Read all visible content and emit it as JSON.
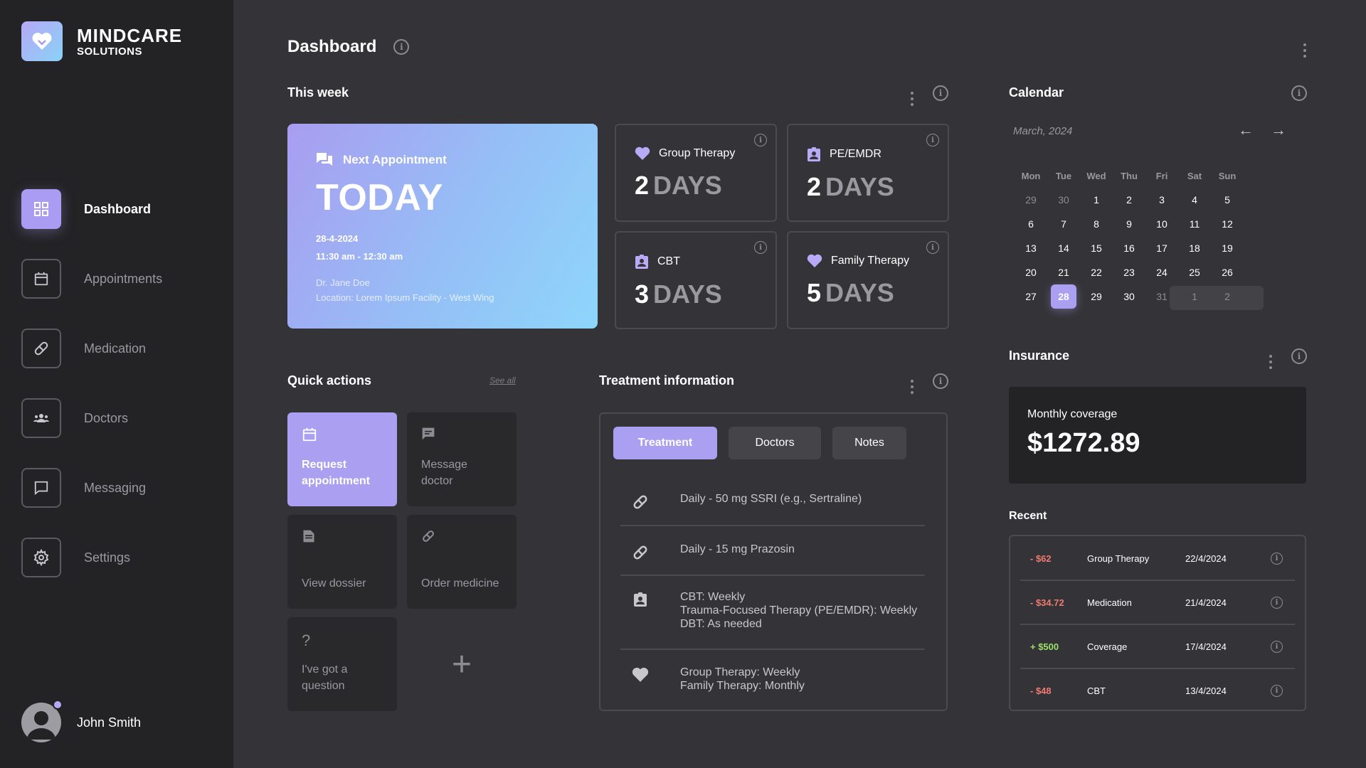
{
  "brand": {
    "line1": "MINDCARE",
    "line2": "SOLUTIONS"
  },
  "nav": {
    "items": [
      {
        "label": "Dashboard",
        "icon": "grid-icon"
      },
      {
        "label": "Appointments",
        "icon": "calendar-icon"
      },
      {
        "label": "Medication",
        "icon": "pill-icon"
      },
      {
        "label": "Doctors",
        "icon": "people-icon"
      },
      {
        "label": "Messaging",
        "icon": "chat-icon"
      },
      {
        "label": "Settings",
        "icon": "gear-icon"
      }
    ]
  },
  "user": {
    "name": "John Smith"
  },
  "page": {
    "title": "Dashboard"
  },
  "this_week": {
    "title": "This week",
    "next": {
      "heading": "Next Appointment",
      "day": "TODAY",
      "date": "28-4-2024",
      "time": "11:30 am - 12:30 am",
      "doctor": "Dr. Jane Doe",
      "location": "Location: Lorem Ipsum Facility - West Wing"
    },
    "cards": [
      {
        "name": "Group Therapy",
        "count": "2",
        "unit": "DAYS",
        "icon": "heart-icon"
      },
      {
        "name": "PE/EMDR",
        "count": "2",
        "unit": "DAYS",
        "icon": "badge-icon"
      },
      {
        "name": "CBT",
        "count": "3",
        "unit": "DAYS",
        "icon": "badge-icon"
      },
      {
        "name": "Family Therapy",
        "count": "5",
        "unit": "DAYS",
        "icon": "heart-icon"
      }
    ]
  },
  "quick_actions": {
    "title": "Quick actions",
    "see_all": "See all",
    "items": [
      {
        "label": "Request appointment",
        "icon": "calendar-icon"
      },
      {
        "label": "Message doctor",
        "icon": "chat-icon"
      },
      {
        "label": "View dossier",
        "icon": "document-icon"
      },
      {
        "label": "Order medicine",
        "icon": "pill-icon"
      },
      {
        "label": "I've got a question",
        "icon": "question-icon"
      }
    ],
    "add": "+"
  },
  "treatment": {
    "title": "Treatment information",
    "tabs": [
      "Treatment",
      "Doctors",
      "Notes"
    ],
    "rows": [
      {
        "lines": [
          "Daily - 50 mg SSRI (e.g., Sertraline)"
        ],
        "icon": "pill-icon"
      },
      {
        "lines": [
          "Daily - 15 mg Prazosin"
        ],
        "icon": "pill-icon"
      },
      {
        "lines": [
          "CBT: Weekly",
          "Trauma-Focused Therapy (PE/EMDR): Weekly",
          "DBT: As needed"
        ],
        "icon": "badge-icon"
      },
      {
        "lines": [
          "Group Therapy: Weekly",
          "Family Therapy: Monthly"
        ],
        "icon": "heart-icon"
      }
    ]
  },
  "calendar": {
    "title": "Calendar",
    "month": "March, 2024",
    "prev": "←",
    "next": "→",
    "weekdays": [
      "Mon",
      "Tue",
      "Wed",
      "Thu",
      "Fri",
      "Sat",
      "Sun"
    ],
    "weeks": [
      [
        "29",
        "30",
        "1",
        "2",
        "3",
        "4",
        "5"
      ],
      [
        "6",
        "7",
        "8",
        "9",
        "10",
        "11",
        "12"
      ],
      [
        "13",
        "14",
        "15",
        "16",
        "17",
        "18",
        "19"
      ],
      [
        "20",
        "21",
        "22",
        "23",
        "24",
        "25",
        "26"
      ],
      [
        "27",
        "28",
        "29",
        "30",
        "31",
        "1",
        "2"
      ]
    ],
    "selected": "28"
  },
  "insurance": {
    "title": "Insurance",
    "coverage_label": "Monthly coverage",
    "coverage_value": "$1272.89",
    "recent_title": "Recent",
    "recent": [
      {
        "amount": "- $62",
        "category": "Group Therapy",
        "date": "22/4/2024",
        "type": "neg"
      },
      {
        "amount": "- $34.72",
        "category": "Medication",
        "date": "21/4/2024",
        "type": "neg"
      },
      {
        "amount": "+ $500",
        "category": "Coverage",
        "date": "17/4/2024",
        "type": "pos"
      },
      {
        "amount": "- $48",
        "category": "CBT",
        "date": "13/4/2024",
        "type": "neg"
      }
    ]
  },
  "colors": {
    "accent": "#ab9ff2",
    "background": "#343337",
    "sidebar": "#232225",
    "negative": "#f07a72",
    "positive": "#9ee06a"
  }
}
